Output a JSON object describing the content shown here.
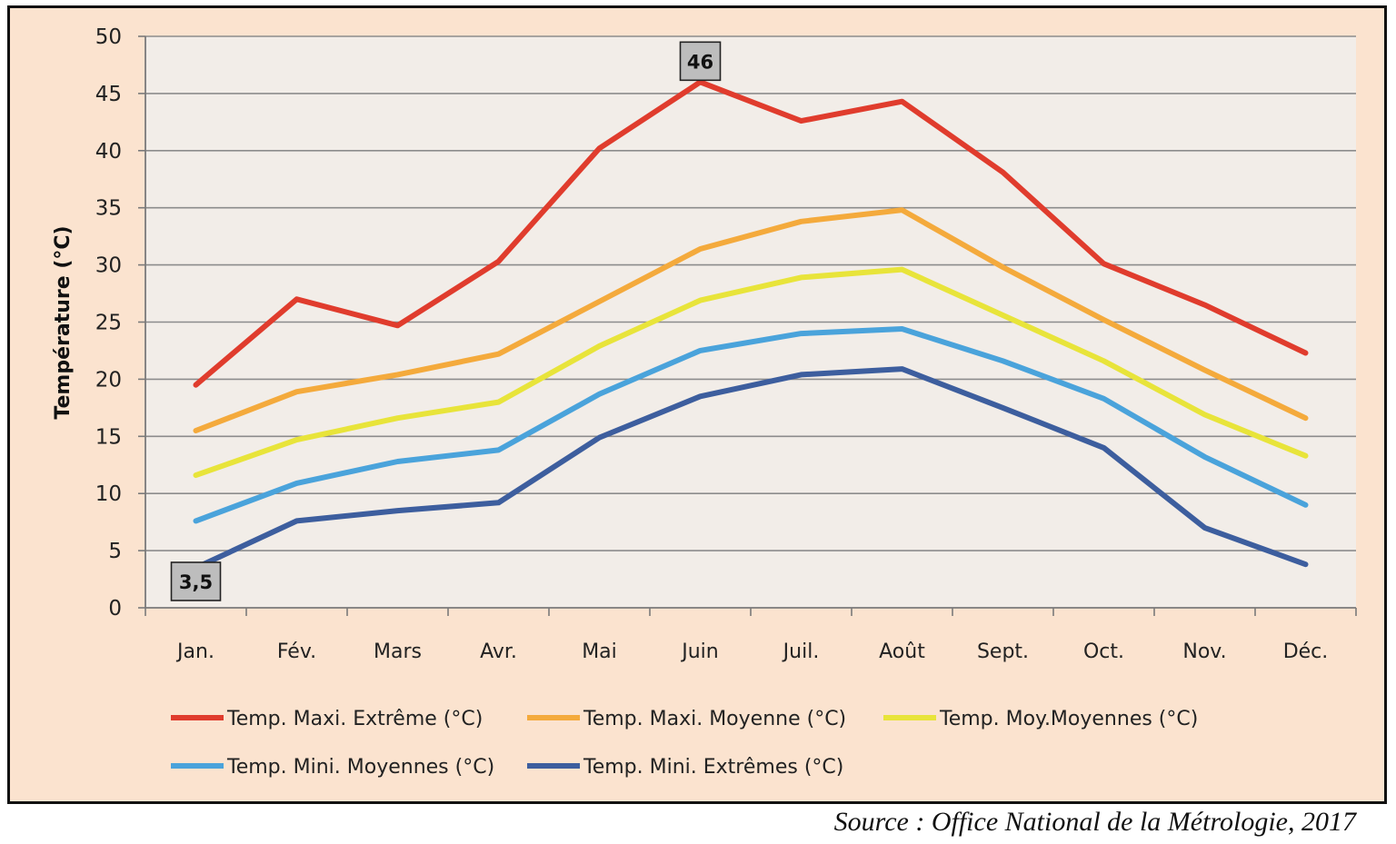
{
  "colors": {
    "frame_background": "#fbe3cf",
    "plot_background": "#f2ede8",
    "gridline": "#8c8c8c",
    "callout_fill": "#bdbdbd"
  },
  "chart_data": {
    "type": "line",
    "title": "",
    "xlabel": "",
    "ylabel": "Température (°C)",
    "ylim": [
      0,
      50
    ],
    "yticks": [
      0,
      5,
      10,
      15,
      20,
      25,
      30,
      35,
      40,
      45,
      50
    ],
    "grid": true,
    "legend_position": "bottom",
    "categories": [
      "Jan.",
      "Fév.",
      "Mars",
      "Avr.",
      "Mai",
      "Juin",
      "Juil.",
      "Août",
      "Sept.",
      "Oct.",
      "Nov.",
      "Déc."
    ],
    "series": [
      {
        "name": "Temp. Maxi. Extrême (°C)",
        "color": "#e03c2d",
        "values": [
          19.5,
          27.0,
          24.7,
          30.3,
          40.2,
          46.0,
          42.6,
          44.3,
          38.1,
          30.1,
          26.5,
          22.3
        ]
      },
      {
        "name": "Temp. Maxi. Moyenne (°C)",
        "color": "#f4aa3c",
        "values": [
          15.5,
          18.9,
          20.4,
          22.2,
          26.8,
          31.4,
          33.8,
          34.8,
          29.8,
          25.2,
          20.8,
          16.6
        ]
      },
      {
        "name": "Temp. Moy.Moyennes (°C)",
        "color": "#e8e43a",
        "values": [
          11.6,
          14.7,
          16.6,
          18.0,
          22.9,
          26.9,
          28.9,
          29.6,
          25.6,
          21.6,
          16.9,
          13.3
        ]
      },
      {
        "name": "Temp. Mini. Moyennes (°C)",
        "color": "#4aa3db",
        "values": [
          7.6,
          10.9,
          12.8,
          13.8,
          18.7,
          22.5,
          24.0,
          24.4,
          21.6,
          18.3,
          13.2,
          9.0
        ]
      },
      {
        "name": "Temp. Mini. Extrêmes (°C)",
        "color": "#3d5e9e",
        "values": [
          3.5,
          7.6,
          8.5,
          9.2,
          14.9,
          18.5,
          20.4,
          20.9,
          17.5,
          14.0,
          7.0,
          3.8
        ]
      }
    ],
    "annotations": [
      {
        "text": "46",
        "series": 0,
        "category": "Juin",
        "value": 46
      },
      {
        "text": "3,5",
        "series": 4,
        "category": "Jan.",
        "value": 3.5
      }
    ]
  },
  "source": "Source : Office National de la Métrologie, 2017"
}
